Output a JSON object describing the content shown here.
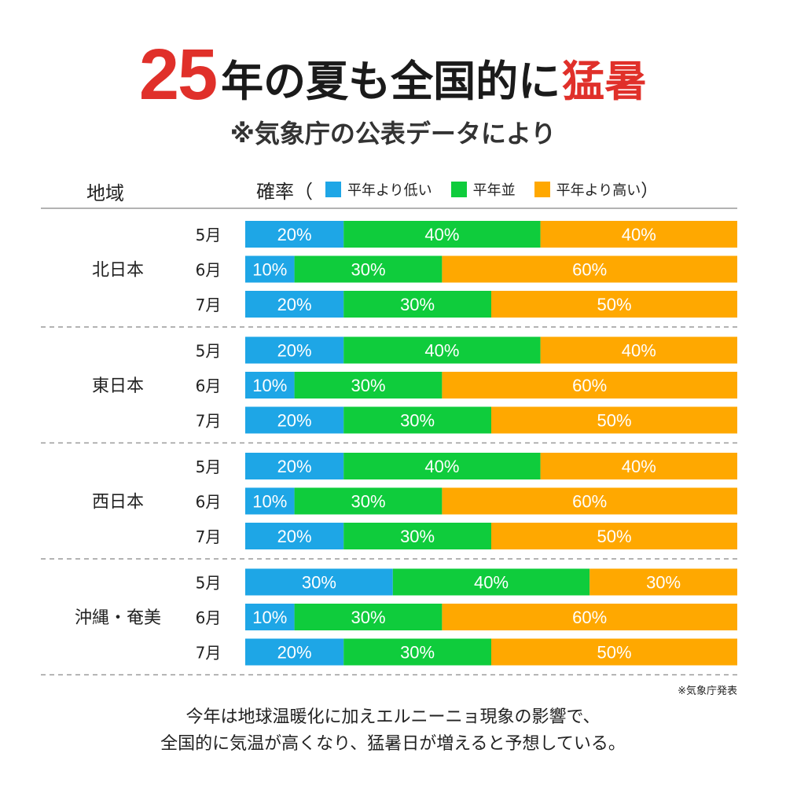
{
  "title": {
    "number": "25",
    "middle": "年の夏も全国的に",
    "emphasis": "猛暑",
    "accent_color": "#e0302a"
  },
  "subtitle": "※気象庁の公表データにより",
  "header": {
    "region_label": "地域",
    "probability_label": "確率（",
    "close_paren": "）"
  },
  "legend": [
    {
      "name": "below",
      "label": "平年より低い",
      "color": "#1ea6e6"
    },
    {
      "name": "normal",
      "label": "平年並",
      "color": "#0fcc3c"
    },
    {
      "name": "above",
      "label": "平年より高い",
      "color": "#ffa800"
    }
  ],
  "chart_data": {
    "type": "stacked-bar-horizontal",
    "title": "25年の夏も全国的に猛暑",
    "unit": "%",
    "series_names": [
      "平年より低い",
      "平年並",
      "平年より高い"
    ],
    "regions": [
      {
        "name": "北日本",
        "rows": [
          {
            "month": "5月",
            "values": [
              20,
              40,
              40
            ]
          },
          {
            "month": "6月",
            "values": [
              10,
              30,
              60
            ]
          },
          {
            "month": "7月",
            "values": [
              20,
              30,
              50
            ]
          }
        ]
      },
      {
        "name": "東日本",
        "rows": [
          {
            "month": "5月",
            "values": [
              20,
              40,
              40
            ]
          },
          {
            "month": "6月",
            "values": [
              10,
              30,
              60
            ]
          },
          {
            "month": "7月",
            "values": [
              20,
              30,
              50
            ]
          }
        ]
      },
      {
        "name": "西日本",
        "rows": [
          {
            "month": "5月",
            "values": [
              20,
              40,
              40
            ]
          },
          {
            "month": "6月",
            "values": [
              10,
              30,
              60
            ]
          },
          {
            "month": "7月",
            "values": [
              20,
              30,
              50
            ]
          }
        ]
      },
      {
        "name": "沖縄・奄美",
        "rows": [
          {
            "month": "5月",
            "values": [
              30,
              40,
              30
            ]
          },
          {
            "month": "6月",
            "values": [
              10,
              30,
              60
            ]
          },
          {
            "month": "7月",
            "values": [
              20,
              30,
              50
            ]
          }
        ]
      }
    ]
  },
  "source": "※気象庁発表",
  "caption": [
    "今年は地球温暖化に加えエルニーニョ現象の影響で、",
    "全国的に気温が高くなり、猛暑日が増えると予想している。"
  ]
}
